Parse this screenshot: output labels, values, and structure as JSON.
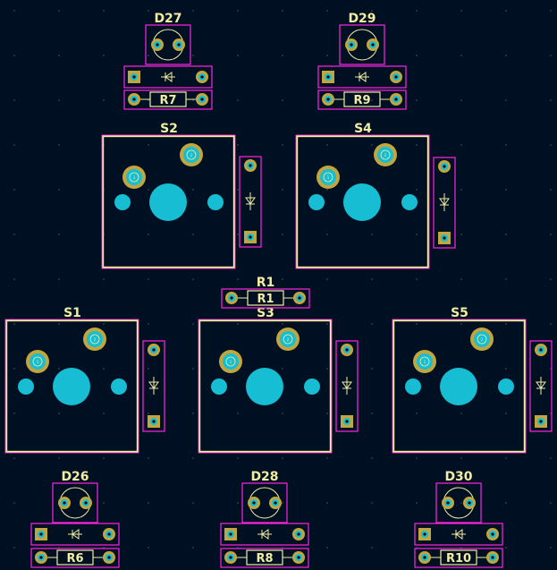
{
  "board": {
    "colors": {
      "background": "#001023",
      "silkscreen": "#f2eda1",
      "courtyard": "#ff26e2",
      "copper": "#c2a53c",
      "pad": "#17bdd3",
      "drill": "#000000"
    }
  },
  "switches": [
    {
      "ref": "S2",
      "pin1": "1",
      "pin2": "2"
    },
    {
      "ref": "S4",
      "pin1": "1",
      "pin2": "2"
    },
    {
      "ref": "S1",
      "pin1": "1",
      "pin2": "2"
    },
    {
      "ref": "S3",
      "pin1": "1",
      "pin2": "2"
    },
    {
      "ref": "S5",
      "pin1": "1",
      "pin2": "2"
    }
  ],
  "leds": [
    {
      "ref": "D27"
    },
    {
      "ref": "D29"
    },
    {
      "ref": "D26"
    },
    {
      "ref": "D28"
    },
    {
      "ref": "D30"
    }
  ],
  "resistors": [
    {
      "ref": "R7"
    },
    {
      "ref": "R9"
    },
    {
      "ref": "R1"
    },
    {
      "ref": "R6"
    },
    {
      "ref": "R8"
    },
    {
      "ref": "R10"
    }
  ]
}
